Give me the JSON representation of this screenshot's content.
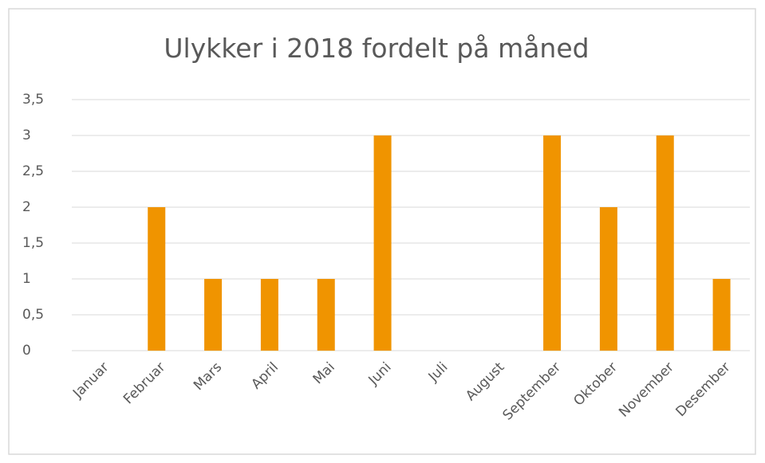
{
  "chart_data": {
    "type": "bar",
    "title": "Ulykker i 2018 fordelt på måned",
    "categories": [
      "Januar",
      "Februar",
      "Mars",
      "April",
      "Mai",
      "Juni",
      "Juli",
      "August",
      "September",
      "Oktober",
      "November",
      "Desember"
    ],
    "values": [
      0,
      2,
      1,
      1,
      1,
      3,
      0,
      0,
      3,
      2,
      3,
      1
    ],
    "color": "#f09400",
    "ylim": [
      0,
      3.5
    ],
    "yticks": [
      0,
      {
        "value": 0.5,
        "label": "0,5"
      },
      1,
      {
        "value": 1.5,
        "label": "1,5"
      },
      2,
      {
        "value": 2.5,
        "label": "2,5"
      },
      3,
      {
        "value": 3.5,
        "label": "3,5"
      }
    ],
    "grid": true
  }
}
